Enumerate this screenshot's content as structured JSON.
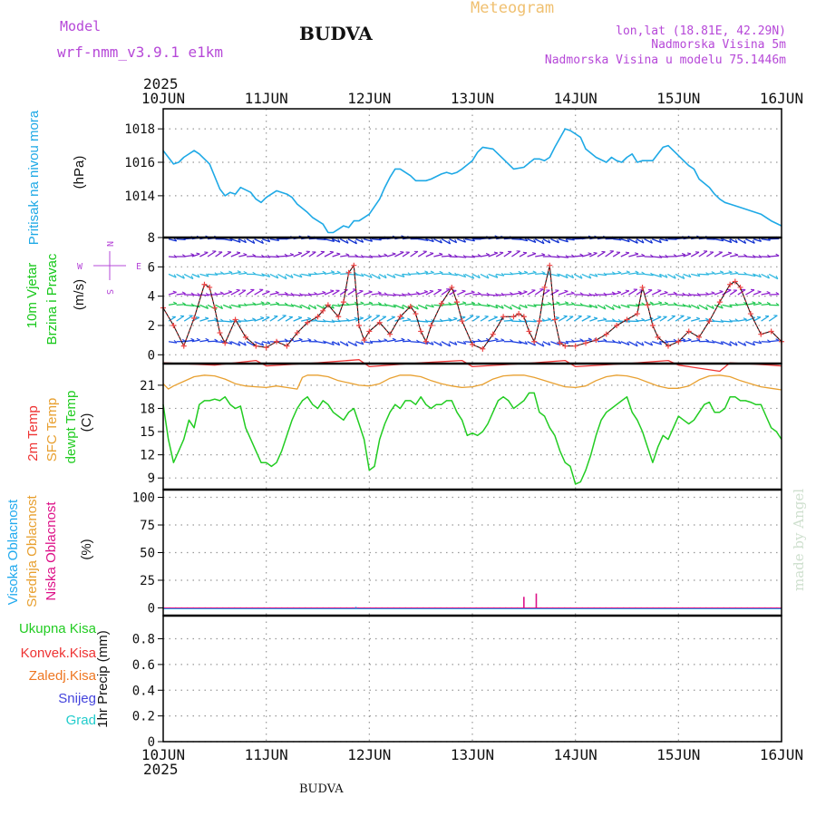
{
  "header": {
    "model_label": "Model",
    "model_name": "wrf-nmm_v3.9.1  e1km",
    "station": "BUDVA",
    "product": "Meteogram",
    "lonlat": "lon,lat (18.81E, 42.29N)",
    "elevation": "Nadmorska Visina 5m",
    "model_elevation": "Nadmorska Visina u modelu 75.1446m",
    "year_top": "2025",
    "year_bottom": "2025",
    "footer_station": "BUDVA",
    "credit": "made by Angel"
  },
  "colors": {
    "pressure": "#1ea9e6",
    "wind_label": "#17c81a",
    "purple": "#b648d8",
    "temp2m": "#ee3333",
    "sfc": "#e8a030",
    "dewpt": "#22cc22",
    "high_cloud": "#22aaee",
    "mid_cloud": "#e8a030",
    "low_cloud": "#dd1188",
    "snow": "#4444dd",
    "hail": "#22cccc",
    "title_orange": "#f0c070"
  },
  "chart_data": [
    {
      "type": "line",
      "panel": "pressure",
      "ylabel": [
        "Pritisak na nivou mora",
        "(hPa)"
      ],
      "x_ticks": [
        "10JUN",
        "11JUN",
        "12JUN",
        "13JUN",
        "14JUN",
        "15JUN",
        "16JUN"
      ],
      "y_ticks": [
        1014,
        1016,
        1018
      ],
      "ylim": [
        1011.5,
        1019.2
      ],
      "grid": true,
      "series": [
        {
          "x": [
            0,
            0.1,
            0.15,
            0.2,
            0.3,
            0.35,
            0.45,
            0.55,
            0.6,
            0.65,
            0.7,
            0.75,
            0.85,
            0.9,
            0.95,
            1.0,
            1.1,
            1.2,
            1.25,
            1.3,
            1.4,
            1.45,
            1.5,
            1.55,
            1.6,
            1.65,
            1.7,
            1.75,
            1.8,
            1.85,
            1.9,
            1.95,
            2.0,
            2.1,
            2.15,
            2.2,
            2.25,
            2.3,
            2.4,
            2.45,
            2.5,
            2.55,
            2.6,
            2.7,
            2.75,
            2.8,
            2.85,
            2.9,
            3.0,
            3.05,
            3.1,
            3.2,
            3.3,
            3.4,
            3.5,
            3.6,
            3.65,
            3.7,
            3.75,
            3.8,
            3.9,
            3.95,
            4.05,
            4.1,
            4.2,
            4.3,
            4.35,
            4.4,
            4.45,
            4.5,
            4.55,
            4.6,
            4.65,
            4.75,
            4.8,
            4.85,
            4.9,
            5.0,
            5.05,
            5.1,
            5.15,
            5.2,
            5.3,
            5.35,
            5.4,
            5.45,
            5.5,
            5.6,
            5.7,
            5.8,
            5.9,
            6.0
          ],
          "values": [
            1016.7,
            1015.9,
            1016.0,
            1016.3,
            1016.7,
            1016.5,
            1015.9,
            1014.4,
            1014.0,
            1014.2,
            1014.1,
            1014.5,
            1014.2,
            1013.8,
            1013.6,
            1013.9,
            1014.3,
            1014.1,
            1013.9,
            1013.5,
            1013.0,
            1012.7,
            1012.5,
            1012.3,
            1011.8,
            1011.8,
            1012.0,
            1012.2,
            1012.1,
            1012.5,
            1012.5,
            1012.7,
            1012.9,
            1013.8,
            1014.5,
            1015.1,
            1015.6,
            1015.6,
            1015.2,
            1014.9,
            1014.9,
            1014.9,
            1015.0,
            1015.3,
            1015.4,
            1015.3,
            1015.4,
            1015.6,
            1016.1,
            1016.6,
            1016.9,
            1016.8,
            1016.2,
            1015.6,
            1015.7,
            1016.2,
            1016.2,
            1016.1,
            1016.3,
            1016.9,
            1018.0,
            1017.9,
            1017.5,
            1016.8,
            1016.3,
            1016.0,
            1016.3,
            1016.1,
            1016.0,
            1016.3,
            1016.5,
            1016.0,
            1016.1,
            1016.1,
            1016.5,
            1016.9,
            1017.0,
            1016.4,
            1016.1,
            1015.8,
            1015.6,
            1015.0,
            1014.5,
            1014.1,
            1013.8,
            1013.6,
            1013.5,
            1013.3,
            1013.1,
            1012.9,
            1012.5,
            1012.2
          ]
        }
      ]
    },
    {
      "type": "line",
      "panel": "wind",
      "ylabel": [
        "10m Vjetar",
        "Brzina i Pravac",
        "(m/s)"
      ],
      "compass_rose": [
        "N",
        "E",
        "S",
        "W"
      ],
      "y_ticks": [
        0,
        2,
        4,
        6,
        8
      ],
      "ylim": [
        -0.6,
        8
      ],
      "grid": true,
      "series": [
        {
          "name": "speed",
          "x": [
            0,
            0.1,
            0.2,
            0.3,
            0.4,
            0.45,
            0.5,
            0.55,
            0.6,
            0.7,
            0.8,
            0.9,
            1.0,
            1.1,
            1.2,
            1.3,
            1.4,
            1.5,
            1.55,
            1.6,
            1.7,
            1.75,
            1.8,
            1.85,
            1.9,
            1.95,
            2.0,
            2.1,
            2.2,
            2.3,
            2.4,
            2.45,
            2.5,
            2.55,
            2.6,
            2.7,
            2.8,
            2.85,
            2.9,
            3.0,
            3.1,
            3.2,
            3.3,
            3.4,
            3.45,
            3.5,
            3.55,
            3.6,
            3.65,
            3.7,
            3.75,
            3.8,
            3.85,
            3.9,
            4.0,
            4.1,
            4.2,
            4.3,
            4.4,
            4.5,
            4.6,
            4.65,
            4.7,
            4.75,
            4.8,
            4.9,
            5.0,
            5.1,
            5.2,
            5.3,
            5.4,
            5.5,
            5.55,
            5.6,
            5.7,
            5.8,
            5.9,
            6.0
          ],
          "values": [
            3.2,
            2.0,
            0.6,
            2.5,
            4.8,
            4.6,
            3.2,
            1.5,
            0.8,
            2.4,
            1.2,
            0.6,
            0.5,
            0.9,
            0.6,
            1.5,
            2.2,
            2.6,
            3.0,
            3.4,
            2.6,
            3.6,
            5.6,
            6.1,
            2.0,
            1.0,
            1.6,
            2.2,
            1.4,
            2.6,
            3.3,
            2.8,
            1.6,
            0.9,
            2.0,
            3.5,
            4.6,
            3.6,
            2.3,
            0.7,
            0.4,
            1.4,
            2.6,
            2.6,
            2.8,
            2.6,
            1.6,
            0.9,
            2.3,
            4.6,
            6.1,
            2.4,
            0.8,
            0.6,
            0.6,
            0.8,
            1.0,
            1.4,
            2.0,
            2.4,
            2.8,
            4.6,
            3.4,
            2.0,
            1.2,
            0.6,
            0.9,
            1.6,
            1.2,
            2.3,
            3.6,
            4.8,
            5.0,
            4.6,
            2.8,
            1.4,
            1.6,
            0.9
          ]
        }
      ]
    },
    {
      "type": "line",
      "panel": "temperature",
      "ylabel": [
        "2m Temp",
        "SFC Temp",
        "dewpt Temp",
        "(C)"
      ],
      "y_ticks": [
        9,
        12,
        15,
        18,
        21
      ],
      "ylim": [
        7.5,
        23.8
      ],
      "grid": true,
      "series": [
        {
          "name": "2m Temp",
          "x": [
            0,
            0.5,
            0.9,
            1.0,
            1.5,
            1.9,
            2.0,
            2.5,
            2.9,
            3.0,
            3.5,
            3.9,
            4.0,
            4.5,
            4.9,
            5.0,
            5.4,
            5.5,
            5.9,
            6.0
          ],
          "values": [
            23.9,
            23.6,
            24.2,
            23.5,
            23.9,
            24.3,
            23.4,
            23.9,
            24.2,
            23.4,
            23.8,
            24.2,
            23.4,
            23.8,
            24.2,
            23.6,
            22.8,
            23.9,
            23.6,
            23.5
          ]
        },
        {
          "name": "SFC Temp",
          "x": [
            0,
            0.05,
            0.1,
            0.2,
            0.3,
            0.4,
            0.5,
            0.6,
            0.7,
            0.8,
            0.9,
            1.0,
            1.1,
            1.2,
            1.3,
            1.35,
            1.4,
            1.5,
            1.6,
            1.7,
            1.8,
            1.9,
            2.0,
            2.1,
            2.2,
            2.3,
            2.4,
            2.5,
            2.6,
            2.7,
            2.8,
            2.9,
            3.0,
            3.1,
            3.2,
            3.3,
            3.4,
            3.5,
            3.6,
            3.7,
            3.8,
            3.9,
            4.0,
            4.1,
            4.2,
            4.3,
            4.4,
            4.5,
            4.6,
            4.7,
            4.8,
            4.9,
            5.0,
            5.1,
            5.2,
            5.3,
            5.4,
            5.5,
            5.6,
            5.7,
            5.8,
            5.9,
            6.0
          ],
          "values": [
            21.2,
            20.5,
            20.9,
            21.5,
            22.1,
            22.3,
            22.2,
            21.8,
            21.2,
            20.9,
            20.8,
            20.7,
            20.9,
            20.7,
            20.5,
            22.0,
            22.3,
            22.3,
            22.1,
            21.6,
            21.3,
            21.0,
            20.9,
            21.2,
            21.9,
            22.3,
            22.3,
            22.1,
            21.6,
            21.2,
            20.9,
            20.7,
            20.8,
            21.1,
            21.8,
            22.2,
            22.3,
            22.3,
            22.0,
            21.6,
            21.2,
            20.8,
            20.7,
            20.9,
            21.6,
            22.1,
            22.3,
            22.2,
            21.9,
            21.4,
            20.9,
            20.6,
            20.6,
            20.9,
            21.7,
            22.2,
            22.3,
            22.1,
            21.6,
            21.2,
            20.8,
            20.6,
            20.4
          ]
        },
        {
          "name": "dewpt Temp",
          "x": [
            0,
            0.05,
            0.1,
            0.15,
            0.2,
            0.25,
            0.3,
            0.35,
            0.4,
            0.45,
            0.5,
            0.55,
            0.6,
            0.65,
            0.7,
            0.75,
            0.8,
            0.85,
            0.9,
            0.95,
            1.0,
            1.05,
            1.1,
            1.15,
            1.2,
            1.25,
            1.3,
            1.35,
            1.4,
            1.45,
            1.5,
            1.55,
            1.6,
            1.65,
            1.7,
            1.75,
            1.8,
            1.85,
            1.9,
            1.95,
            2.0,
            2.05,
            2.1,
            2.15,
            2.2,
            2.25,
            2.3,
            2.35,
            2.4,
            2.45,
            2.5,
            2.55,
            2.6,
            2.65,
            2.7,
            2.75,
            2.8,
            2.85,
            2.9,
            2.95,
            3.0,
            3.05,
            3.1,
            3.15,
            3.2,
            3.25,
            3.3,
            3.35,
            3.4,
            3.45,
            3.5,
            3.55,
            3.6,
            3.65,
            3.7,
            3.75,
            3.8,
            3.85,
            3.9,
            3.95,
            4.0,
            4.05,
            4.1,
            4.15,
            4.2,
            4.25,
            4.3,
            4.35,
            4.4,
            4.45,
            4.5,
            4.55,
            4.6,
            4.65,
            4.7,
            4.75,
            4.8,
            4.85,
            4.9,
            4.95,
            5.0,
            5.05,
            5.1,
            5.15,
            5.2,
            5.25,
            5.3,
            5.35,
            5.4,
            5.45,
            5.5,
            5.55,
            5.6,
            5.65,
            5.7,
            5.75,
            5.8,
            5.85,
            5.9,
            5.95,
            6.0
          ],
          "values": [
            18.5,
            14.0,
            11.0,
            12.5,
            14.0,
            16.5,
            15.5,
            18.5,
            19.0,
            19.0,
            19.2,
            19.0,
            19.5,
            18.5,
            18.0,
            18.3,
            15.5,
            14.0,
            12.5,
            11.0,
            11.0,
            10.5,
            11.0,
            12.5,
            14.5,
            16.5,
            18.0,
            19.0,
            19.5,
            18.5,
            18.0,
            19.0,
            18.5,
            17.5,
            17.0,
            16.5,
            17.5,
            18.0,
            16.0,
            14.0,
            10.0,
            10.5,
            14.0,
            16.0,
            17.5,
            18.5,
            18.0,
            19.0,
            19.0,
            18.5,
            19.5,
            18.5,
            18.0,
            18.5,
            18.5,
            19.0,
            19.0,
            17.5,
            16.5,
            14.5,
            14.8,
            14.5,
            15.0,
            16.0,
            17.5,
            19.0,
            19.5,
            19.0,
            18.0,
            18.5,
            19.0,
            20.0,
            20.0,
            17.5,
            17.0,
            15.5,
            14.5,
            12.5,
            11.0,
            10.5,
            8.2,
            8.5,
            10.0,
            12.0,
            14.5,
            16.5,
            17.5,
            18.0,
            18.5,
            19.0,
            19.5,
            17.5,
            16.5,
            15.0,
            13.0,
            11.0,
            13.0,
            14.5,
            14.0,
            15.5,
            17.0,
            16.5,
            16.0,
            16.5,
            17.5,
            18.5,
            18.8,
            17.5,
            17.5,
            18.0,
            19.5,
            19.5,
            19.0,
            19.0,
            18.8,
            18.5,
            18.5,
            17.0,
            15.5,
            15.0,
            14.0
          ]
        }
      ]
    },
    {
      "type": "bar",
      "panel": "cloud",
      "ylabel": [
        "Visoka Oblacnost",
        "Srednja Oblacnost",
        "Niska Oblacnost",
        "(%)"
      ],
      "y_ticks": [
        0,
        25,
        50,
        75,
        100
      ],
      "ylim": [
        -7,
        107
      ],
      "grid": true,
      "series": [
        {
          "name": "Visoka Oblacnost",
          "x": [
            1.87
          ],
          "values": [
            1
          ]
        },
        {
          "name": "Niska Oblacnost",
          "x": [
            3.5,
            3.62
          ],
          "values": [
            10,
            13
          ]
        }
      ]
    },
    {
      "type": "line",
      "panel": "precip",
      "ylabel": [
        "Ukupna Kisa",
        "Konvek.Kisa",
        "Zaledj.Kisa",
        "Snijeg",
        "Grad",
        "1hr Precip (mm)"
      ],
      "y_ticks": [
        0,
        0.2,
        0.4,
        0.6,
        0.8
      ],
      "ylim": [
        0,
        0.98
      ],
      "grid": true,
      "series": [
        {
          "name": "Ukupna Kisa",
          "x": [
            0,
            6
          ],
          "values": [
            0,
            0
          ]
        }
      ]
    }
  ]
}
